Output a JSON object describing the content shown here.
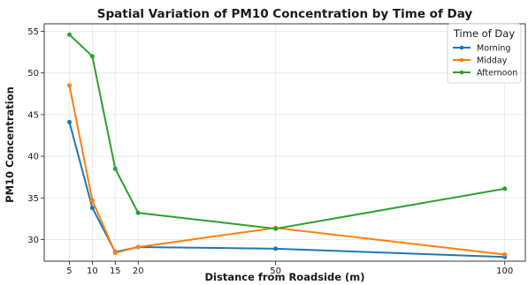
{
  "chart_data": {
    "type": "line",
    "title": "Spatial Variation of PM10 Concentration by Time of Day",
    "xlabel": "Distance from Roadside (m)",
    "ylabel": "PM10 Concentration",
    "x": [
      5,
      10,
      15,
      20,
      50,
      100
    ],
    "x_ticks": [
      5,
      10,
      15,
      20,
      50,
      100
    ],
    "y_ticks": [
      30,
      35,
      40,
      45,
      50,
      55
    ],
    "xlim": [
      -0.5,
      104.5
    ],
    "ylim": [
      27.4,
      55.9
    ],
    "grid": true,
    "legend": {
      "title": "Time of Day",
      "position": "top-right"
    },
    "series": [
      {
        "name": "Morning",
        "color": "#1f77b4",
        "values": [
          44.1,
          33.8,
          28.5,
          29.1,
          28.9,
          27.9
        ]
      },
      {
        "name": "Midday",
        "color": "#ff7f0e",
        "values": [
          48.5,
          34.7,
          28.4,
          29.1,
          31.4,
          28.2
        ]
      },
      {
        "name": "Afternoon",
        "color": "#2ca02c",
        "values": [
          54.6,
          52.0,
          38.5,
          33.2,
          31.3,
          36.1
        ]
      }
    ]
  }
}
